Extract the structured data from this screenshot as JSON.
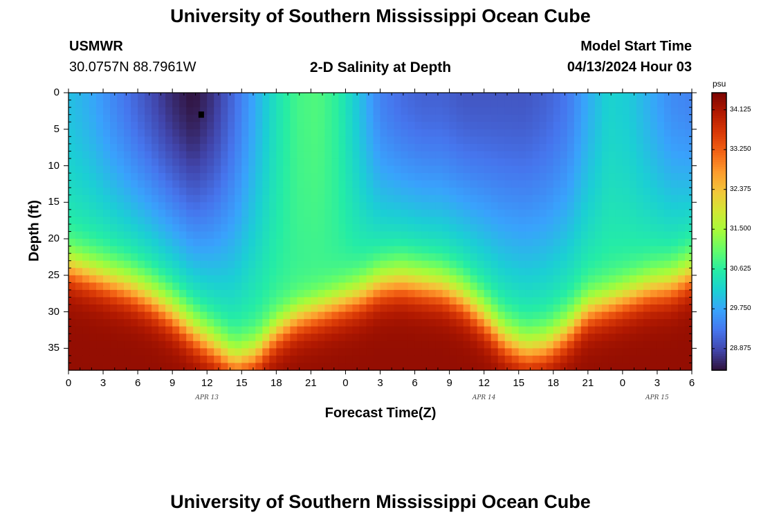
{
  "page": {
    "title_top": "University of Southern Mississippi Ocean Cube",
    "title_bottom": "University of Southern Mississippi Ocean Cube",
    "station_name": "USMWR",
    "station_coords": "30.0757N  88.7961W",
    "plot_title": "2-D Salinity at Depth",
    "model_label": "Model Start Time",
    "model_time": "04/13/2024 Hour 03"
  },
  "chart_data": {
    "type": "heatmap",
    "title": "2-D Salinity at Depth",
    "xlabel": "Forecast Time(Z)",
    "ylabel": "Depth (ft)",
    "x_ticks": [
      "0",
      "3",
      "6",
      "9",
      "12",
      "15",
      "18",
      "21",
      "0",
      "3",
      "6",
      "9",
      "12",
      "15",
      "18",
      "21",
      "0",
      "3",
      "6"
    ],
    "x_range_hours": [
      0,
      54
    ],
    "date_labels": [
      {
        "label": "APR 13",
        "hour": 12
      },
      {
        "label": "APR 14",
        "hour": 36
      },
      {
        "label": "APR 15",
        "hour": 51
      }
    ],
    "y_ticks": [
      0,
      5,
      10,
      15,
      20,
      25,
      30,
      35
    ],
    "y_range": [
      0,
      38
    ],
    "y_inverted": true,
    "marker": {
      "hour": 11.5,
      "depth": 3
    },
    "colorbar": {
      "unit": "psu",
      "ticks": [
        "34.125",
        "33.250",
        "32.375",
        "31.500",
        "30.625",
        "29.750",
        "28.875"
      ],
      "range": [
        28.4,
        34.5
      ],
      "colors": [
        "#30123b",
        "#4145ab",
        "#4675ed",
        "#39a2fc",
        "#1bcfd4",
        "#24eca6",
        "#61fc6c",
        "#a4fc3b",
        "#d1e834",
        "#f3c63a",
        "#fe9b2d",
        "#f36315",
        "#d93806",
        "#b11901",
        "#7a0402"
      ]
    },
    "halocline_depth": [
      24,
      25,
      26,
      27,
      28.5,
      30.5,
      33,
      35,
      37,
      36,
      33,
      31,
      30,
      29,
      28,
      26.5,
      26,
      26.5,
      27,
      28.5,
      31,
      34,
      35.5,
      35,
      33,
      30,
      29,
      28,
      27,
      26.5,
      25
    ],
    "halocline_hours": [
      0,
      1.8,
      3.6,
      5.4,
      7.2,
      9,
      10.8,
      12.6,
      14.4,
      16.2,
      18,
      19.8,
      21.6,
      23.4,
      25.2,
      27,
      28.8,
      30.6,
      32.4,
      34.2,
      36,
      37.8,
      39.6,
      41.4,
      43.2,
      45,
      46.8,
      48.6,
      50.4,
      52.2,
      54
    ],
    "surface_salinity": [
      30.0,
      29.8,
      29.5,
      29.2,
      28.9,
      28.6,
      28.4,
      28.7,
      29.2,
      29.8,
      30.4,
      30.8,
      30.9,
      30.6,
      30.0,
      29.4,
      29.2,
      29.1,
      29.1,
      29.0,
      29.0,
      29.0,
      29.0,
      29.1,
      29.3,
      29.8,
      30.2,
      30.1,
      29.8,
      29.5,
      29.4
    ],
    "deep_salinity_max": 34.3
  }
}
